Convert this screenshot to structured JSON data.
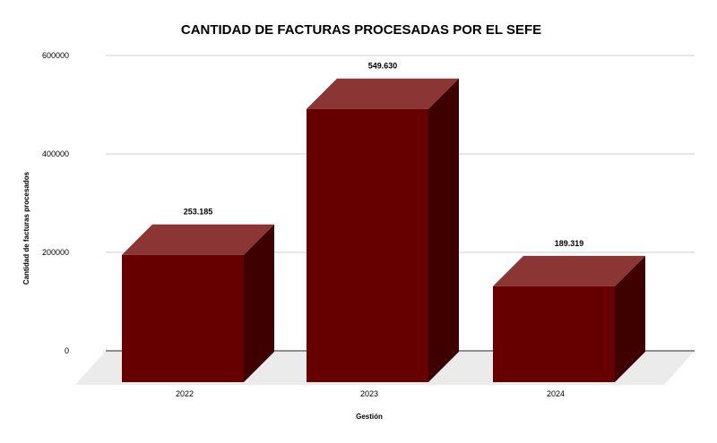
{
  "chart_data": {
    "type": "bar",
    "title": "CANTIDAD DE FACTURAS PROCESADAS POR EL SEFE",
    "xlabel": "Gestión",
    "ylabel": "Cantidad de facturas procesados",
    "categories": [
      "2022",
      "2023",
      "2024"
    ],
    "values": [
      253185,
      549630,
      189319
    ],
    "data_labels": [
      "253.185",
      "549.630",
      "189.319"
    ],
    "ylim": [
      0,
      600000
    ],
    "yticks": [
      "0",
      "200000",
      "400000",
      "600000"
    ],
    "grid": true,
    "legend": "none",
    "colors": {
      "front": "#660000",
      "top": "#8b3535",
      "side": "#3f0000",
      "floor": "#ebebeb",
      "grid": "#cccccc"
    }
  }
}
